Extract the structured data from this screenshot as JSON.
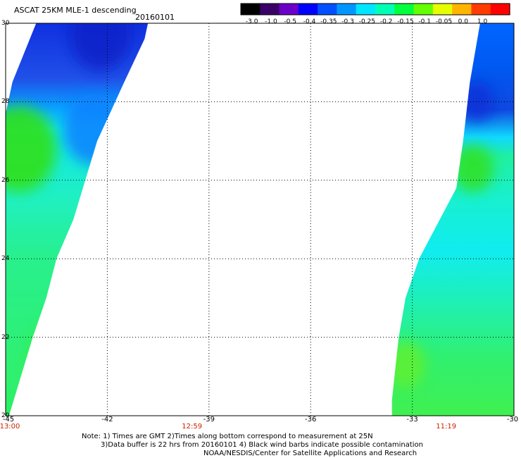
{
  "header": {
    "title": "ASCAT 25KM MLE-1 descending",
    "date": "20160101"
  },
  "colorbar": {
    "labels": [
      "-3.0",
      "-1.0",
      "-0.5",
      "-0.4",
      "-0.35",
      "-0.3",
      "-0.25",
      "-0.2",
      "-0.15",
      "-0.1",
      "-0.05",
      "0.0",
      "1.0"
    ],
    "colors": [
      "#000000",
      "#3a0066",
      "#6a00c8",
      "#0000ff",
      "#0050ff",
      "#0096ff",
      "#00e6ff",
      "#00ffb4",
      "#00ff3c",
      "#64ff00",
      "#e6ff00",
      "#ffb400",
      "#ff3c00",
      "#ff0000"
    ]
  },
  "axes": {
    "x_ticks": [
      "-45",
      "-42",
      "-39",
      "-36",
      "-33",
      "-30"
    ],
    "y_ticks": [
      "30",
      "28",
      "26",
      "24",
      "22",
      "20"
    ],
    "x_range": [
      -45,
      -30
    ],
    "y_range": [
      20,
      30
    ]
  },
  "time_labels": [
    {
      "text": "13:00",
      "lon": -45
    },
    {
      "text": "12:59",
      "lon": -39.5
    },
    {
      "text": "11:19",
      "lon": -32
    }
  ],
  "notes": {
    "line1": "Note: 1) Times are GMT 2)Times along bottom correspond to measurement at 25N",
    "line2": "3)Data buffer is 22 hrs from 20160101 4) Black wind barbs indicate possible contamination",
    "line3": "NOAA/NESDIS/Center for Satellite Applications and Research"
  },
  "swaths": [
    {
      "name": "western-swath",
      "left_edge": [
        [
          30,
          -44.1
        ],
        [
          28.5,
          -44.8
        ],
        [
          27.7,
          -45
        ],
        [
          20,
          -45
        ]
      ],
      "right_edge": [
        [
          30,
          -40.8
        ],
        [
          29.6,
          -40.9
        ],
        [
          28.5,
          -41.5
        ],
        [
          27,
          -42.3
        ],
        [
          25,
          -43.0
        ],
        [
          24,
          -43.5
        ],
        [
          23,
          -43.8
        ],
        [
          22,
          -44.2
        ],
        [
          20,
          -44.9
        ]
      ],
      "color_stops": [
        [
          30,
          "#1030e0"
        ],
        [
          28.6,
          "#2050e8"
        ],
        [
          27.9,
          "#0a9cff"
        ],
        [
          27.3,
          "#10e6f0"
        ],
        [
          25.5,
          "#20f0c0"
        ],
        [
          24,
          "#28f08c"
        ],
        [
          21,
          "#30f070"
        ],
        [
          20,
          "#28f060"
        ]
      ],
      "patches": [
        {
          "lat": 26.8,
          "lon": -44.6,
          "r": 1.1,
          "color": "#30e010"
        },
        {
          "lat": 29.7,
          "lon": -42.2,
          "r": 0.9,
          "color": "#1020c8"
        },
        {
          "lat": 27.3,
          "lon": -42.4,
          "r": 0.9,
          "color": "#0880ff"
        },
        {
          "lat": 21.4,
          "lon": -43.2,
          "r": 1.2,
          "color": "#30f050"
        }
      ]
    },
    {
      "name": "eastern-swath",
      "left_edge": [
        [
          30,
          -31.0
        ],
        [
          28.5,
          -31.3
        ],
        [
          27,
          -31.5
        ],
        [
          25.8,
          -31.7
        ],
        [
          24,
          -32.8
        ],
        [
          23,
          -33.2
        ],
        [
          22,
          -33.4
        ],
        [
          20.4,
          -33.6
        ],
        [
          20,
          -33.6
        ]
      ],
      "right_edge": [
        [
          30,
          -30
        ],
        [
          20,
          -30
        ]
      ],
      "color_stops": [
        [
          30,
          "#0066ff"
        ],
        [
          28.8,
          "#0058f0"
        ],
        [
          27.8,
          "#1048e0"
        ],
        [
          27.1,
          "#10d8ff"
        ],
        [
          26.6,
          "#20f0a0"
        ],
        [
          25.5,
          "#18f0d0"
        ],
        [
          24.2,
          "#10ecf0"
        ],
        [
          22.8,
          "#20f0b0"
        ],
        [
          21.5,
          "#30f070"
        ],
        [
          20,
          "#40f050"
        ]
      ],
      "patches": [
        {
          "lat": 26.3,
          "lon": -31.2,
          "r": 0.6,
          "color": "#30e020"
        },
        {
          "lat": 21.3,
          "lon": -33.2,
          "r": 0.6,
          "color": "#60f030"
        },
        {
          "lat": 28.0,
          "lon": -31.1,
          "r": 0.5,
          "color": "#0a30d8"
        }
      ]
    }
  ]
}
